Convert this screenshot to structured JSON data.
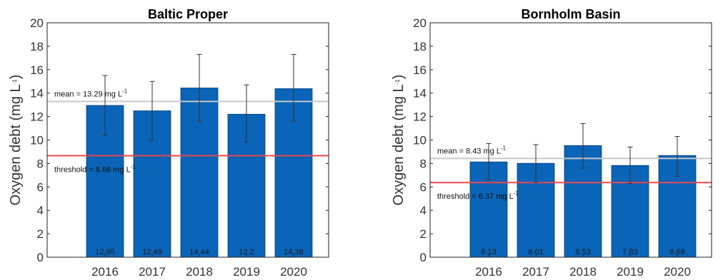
{
  "colors": {
    "bar": "#0a64b8",
    "mean_line": "#c8c8c8",
    "threshold_line": "#e8474e",
    "error_bar": "#333333"
  },
  "chart_data": [
    {
      "type": "bar",
      "title": "Baltic Proper",
      "ylabel": "Oxygen debt (mg L",
      "ylabel_sup": "-1",
      "ylabel_end": ")",
      "ylim": [
        0,
        20
      ],
      "yticks": [
        "0",
        "2",
        "4",
        "6",
        "8",
        "10",
        "12",
        "14",
        "16",
        "18",
        "20"
      ],
      "categories": [
        "2016",
        "2017",
        "2018",
        "2019",
        "2020"
      ],
      "values": [
        12.95,
        12.49,
        14.44,
        12.2,
        14.38
      ],
      "value_labels": [
        "12.95",
        "12.49",
        "14.44",
        "12.2",
        "14.38"
      ],
      "error_low": [
        10.4,
        10.0,
        11.6,
        9.8,
        11.6
      ],
      "error_high": [
        15.5,
        15.0,
        17.3,
        14.7,
        17.3
      ],
      "mean": 13.29,
      "mean_label": "mean = 13.29 mg L",
      "threshold": 8.66,
      "threshold_label": "threshold = 8.66 mg L",
      "unit_sup": "-1",
      "grid": false
    },
    {
      "type": "bar",
      "title": "Bornholm Basin",
      "ylabel": "Oxygen debt (mg L",
      "ylabel_sup": "-1",
      "ylabel_end": ")",
      "ylim": [
        0,
        20
      ],
      "yticks": [
        "0",
        "2",
        "4",
        "6",
        "8",
        "10",
        "12",
        "14",
        "16",
        "18",
        "20"
      ],
      "categories": [
        "2016",
        "2017",
        "2018",
        "2019",
        "2020"
      ],
      "values": [
        8.13,
        8.01,
        9.53,
        7.83,
        8.68
      ],
      "value_labels": [
        "8.13",
        "8.01",
        "9.53",
        "7.83",
        "8.68"
      ],
      "error_low": [
        6.6,
        6.4,
        7.6,
        6.3,
        6.9
      ],
      "error_high": [
        9.7,
        9.6,
        11.4,
        9.4,
        10.3
      ],
      "mean": 8.43,
      "mean_label": "mean = 8.43 mg L",
      "threshold": 6.37,
      "threshold_label": "threshold = 6.37 mg L",
      "unit_sup": "-1",
      "grid": false
    }
  ]
}
